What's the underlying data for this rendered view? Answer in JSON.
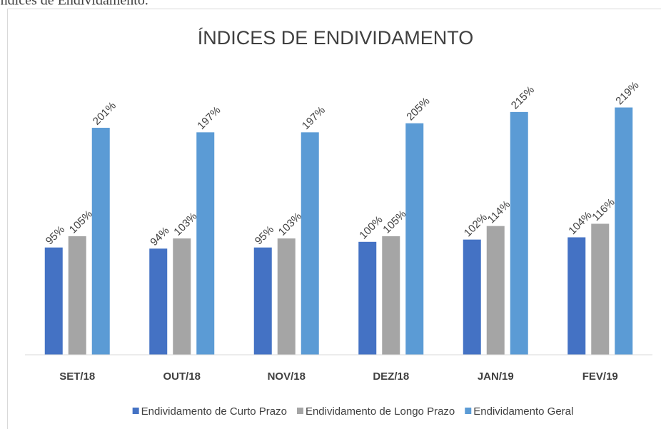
{
  "caption": "Índices de Endividamento.",
  "chart_data": {
    "type": "bar",
    "title": "ÍNDICES DE ENDIVIDAMENTO",
    "categories": [
      "SET/18",
      "OUT/18",
      "NOV/18",
      "DEZ/18",
      "JAN/19",
      "FEV/19"
    ],
    "series": [
      {
        "name": "Endividamento de Curto Prazo",
        "color": "#4472c4",
        "values": [
          95,
          94,
          95,
          100,
          102,
          104
        ],
        "value_labels": [
          "95%",
          "94%",
          "95%",
          "100%",
          "102%",
          "104%"
        ]
      },
      {
        "name": "Endividamento de Longo Prazo",
        "color": "#a5a5a5",
        "values": [
          105,
          103,
          103,
          105,
          114,
          116
        ],
        "value_labels": [
          "105%",
          "103%",
          "103%",
          "105%",
          "114%",
          "116%"
        ]
      },
      {
        "name": "Endividamento Geral",
        "color": "#5b9bd5",
        "values": [
          201,
          197,
          197,
          205,
          215,
          219
        ],
        "value_labels": [
          "201%",
          "197%",
          "197%",
          "205%",
          "215%",
          "219%"
        ]
      }
    ],
    "ylim": [
      0,
      250
    ],
    "legend": "bottom"
  }
}
